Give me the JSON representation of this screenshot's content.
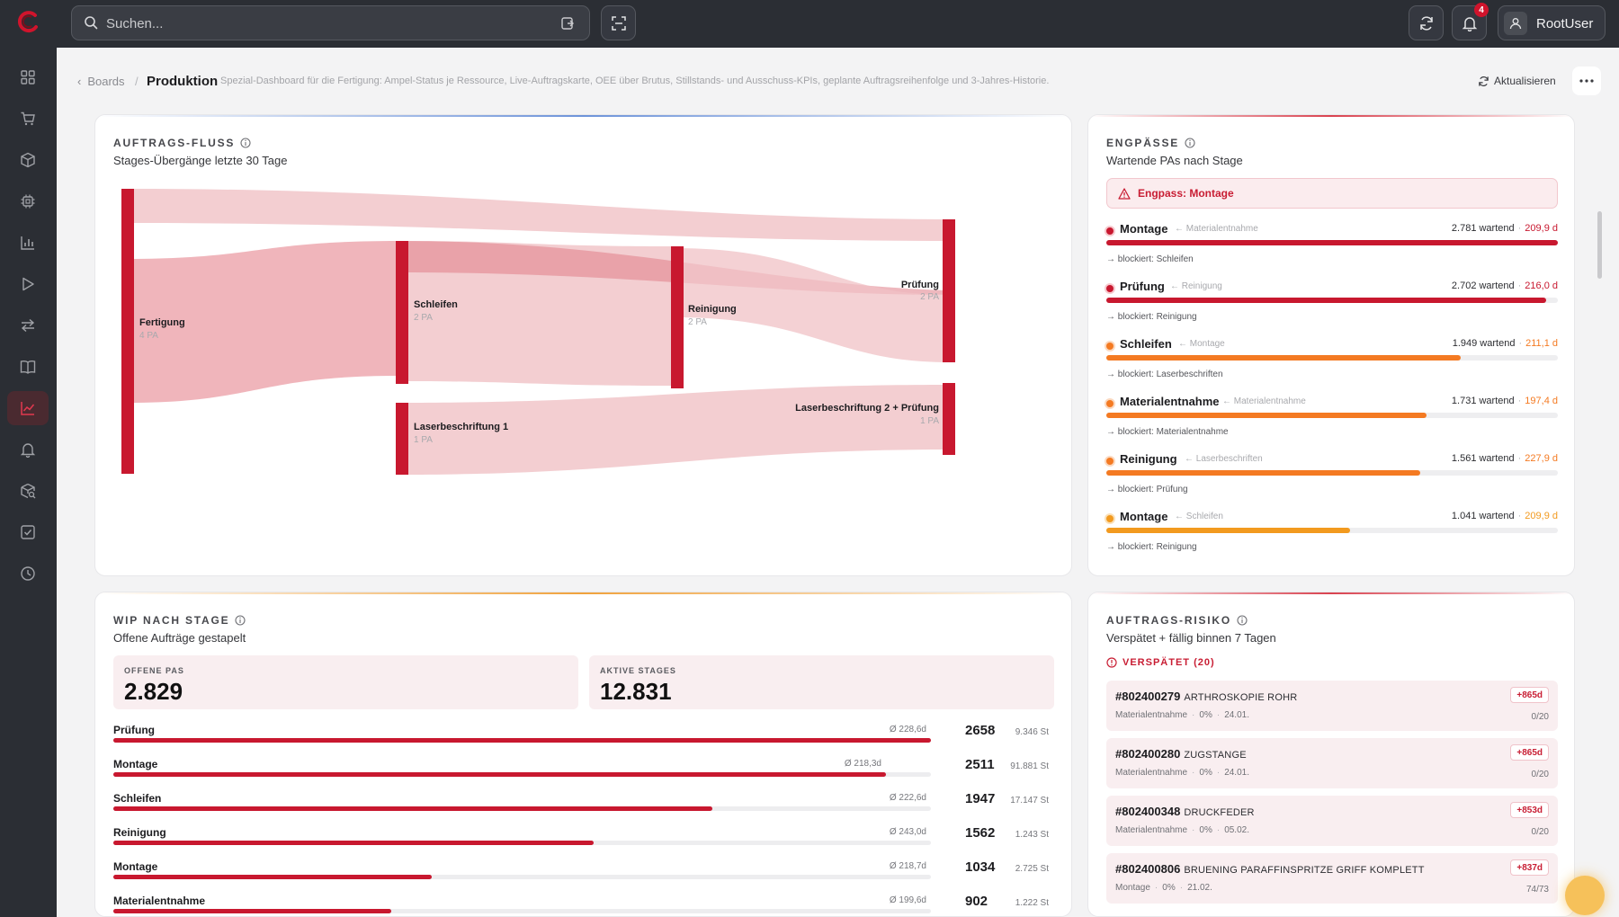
{
  "topbar": {
    "search_placeholder": "Suchen...",
    "notification_count": "4",
    "user_name": "RootUser"
  },
  "sidebar": {
    "items": [
      {
        "icon": "dashboard-grid-icon"
      },
      {
        "icon": "cart-icon"
      },
      {
        "icon": "package-icon"
      },
      {
        "icon": "chip-icon"
      },
      {
        "icon": "bar-chart-icon"
      },
      {
        "icon": "play-icon"
      },
      {
        "icon": "transfer-icon"
      },
      {
        "icon": "book-icon"
      },
      {
        "icon": "line-chart-icon",
        "active": true
      },
      {
        "icon": "bell-icon"
      },
      {
        "icon": "package-search-icon"
      },
      {
        "icon": "checkbox-icon"
      },
      {
        "icon": "clock-icon"
      }
    ]
  },
  "header": {
    "back_label": "Boards",
    "separator": "/",
    "title": "Produktion",
    "description": "Spezial-Dashboard für die Fertigung: Ampel-Status je Ressource, Live-Auftragskarte, OEE über Brutus, Stillstands- und Ausschuss-KPIs, geplante Auftragsreihenfolge und 3-Jahres-Historie.",
    "refresh_label": "Aktualisieren"
  },
  "flow": {
    "title": "AUFTRAGS-FLUSS",
    "subtitle": "Stages-Übergänge letzte 30 Tage",
    "nodes": [
      {
        "label": "Fertigung",
        "count": "4 PA"
      },
      {
        "label": "Schleifen",
        "count": "2 PA"
      },
      {
        "label": "Reinigung",
        "count": "2 PA"
      },
      {
        "label": "Prüfung",
        "count": "2 PA"
      },
      {
        "label": "Laserbeschriftung 1",
        "count": "1 PA"
      },
      {
        "label": "Laserbeschriftung 2 + Prüfung",
        "count": "1 PA"
      }
    ]
  },
  "bottlenecks": {
    "title": "ENGPÄSSE",
    "subtitle": "Wartende PAs nach Stage",
    "alert": "Engpass: Montage",
    "colors": {
      "red": "#c8182f",
      "orange": "#f47a22",
      "amber": "#f29a1f"
    },
    "items": [
      {
        "name": "Montage",
        "from": "← Materialentnahme",
        "waiting": "2.781 wartend",
        "days": "209,9 d",
        "fill": 1.0,
        "color": "#c8182f",
        "blocked": "blockiert: Schleifen"
      },
      {
        "name": "Prüfung",
        "from": "← Reinigung",
        "waiting": "2.702 wartend",
        "days": "216,0 d",
        "fill": 0.975,
        "color": "#c8182f",
        "blocked": "blockiert: Reinigung"
      },
      {
        "name": "Schleifen",
        "from": "← Montage",
        "waiting": "1.949 wartend",
        "days": "211,1 d",
        "fill": 0.785,
        "color": "#f47a22",
        "blocked": "blockiert: Laserbeschriften"
      },
      {
        "name": "Materialentnahme",
        "from": "← Materialentnahme",
        "waiting": "1.731 wartend",
        "days": "197,4 d",
        "fill": 0.71,
        "color": "#f47a22",
        "blocked": "blockiert: Materialentnahme"
      },
      {
        "name": "Reinigung",
        "from": "← Laserbeschriften",
        "waiting": "1.561 wartend",
        "days": "227,9 d",
        "fill": 0.695,
        "color": "#f47a22",
        "blocked": "blockiert: Prüfung"
      },
      {
        "name": "Montage",
        "from": "← Schleifen",
        "waiting": "1.041 wartend",
        "days": "209,9 d",
        "fill": 0.54,
        "color": "#f29a1f",
        "blocked": "blockiert: Reinigung"
      }
    ]
  },
  "wip": {
    "title": "WIP NACH STAGE",
    "subtitle": "Offene Aufträge gestapelt",
    "kpis": [
      {
        "label": "OFFENE PAS",
        "value": "2.829"
      },
      {
        "label": "AKTIVE STAGES",
        "value": "12.831"
      }
    ],
    "rows": [
      {
        "name": "Prüfung",
        "avg": "Ø 228,6d",
        "count": "2658",
        "st": "9.346 St",
        "fill": 1.0
      },
      {
        "name": "Montage",
        "avg": "Ø 218,3d",
        "count": "2511",
        "st": "91.881 St",
        "fill": 0.945
      },
      {
        "name": "Schleifen",
        "avg": "Ø 222,6d",
        "count": "1947",
        "st": "17.147 St",
        "fill": 0.733
      },
      {
        "name": "Reinigung",
        "avg": "Ø 243,0d",
        "count": "1562",
        "st": "1.243 St",
        "fill": 0.588
      },
      {
        "name": "Montage",
        "avg": "Ø 218,7d",
        "count": "1034",
        "st": "2.725 St",
        "fill": 0.389
      },
      {
        "name": "Materialentnahme",
        "avg": "Ø 199,6d",
        "count": "902",
        "st": "1.222 St",
        "fill": 0.34
      }
    ]
  },
  "risk": {
    "title": "AUFTRAGS-RISIKO",
    "subtitle": "Verspätet + fällig binnen 7 Tagen",
    "late_header": "VERSPÄTET (20)",
    "items": [
      {
        "id": "#802400279",
        "name": "ARTHROSKOPIE ROHR",
        "stage": "Materialentnahme",
        "pct": "0%",
        "date": "24.01.",
        "badge": "+865d",
        "progress": "0/20"
      },
      {
        "id": "#802400280",
        "name": "ZUGSTANGE",
        "stage": "Materialentnahme",
        "pct": "0%",
        "date": "24.01.",
        "badge": "+865d",
        "progress": "0/20"
      },
      {
        "id": "#802400348",
        "name": "DRUCKFEDER",
        "stage": "Materialentnahme",
        "pct": "0%",
        "date": "05.02.",
        "badge": "+853d",
        "progress": "0/20"
      },
      {
        "id": "#802400806",
        "name": "BRUENING PARAFFINSPRITZE GRIFF KOMPLETT",
        "stage": "Montage",
        "pct": "0%",
        "date": "21.02.",
        "badge": "+837d",
        "progress": "74/73"
      }
    ]
  }
}
